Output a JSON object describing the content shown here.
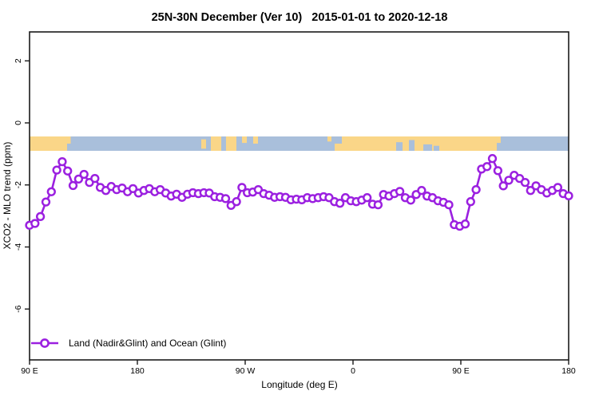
{
  "chart": {
    "title": "25N-30N December (Ver 10)   2015-01-01 to 2020-12-18",
    "xlabel": "Longitude (deg E)",
    "ylabel": "XCO2 - MLO trend (ppm)",
    "legend_label": "Land (Nadir&Glint) and Ocean (Glint)"
  },
  "chart_data": {
    "type": "line",
    "title": "25N-30N December (Ver 10)   2015-01-01 to 2020-12-18",
    "xlabel": "Longitude (deg E)",
    "ylabel": "XCO2 - MLO trend (ppm)",
    "x_tick_labels": [
      "90 E",
      "180",
      "90 W",
      "0",
      "90 E",
      "180"
    ],
    "y_ticks": [
      2,
      0,
      -2,
      -4,
      -6
    ],
    "ylim": [
      -7.6,
      2.9
    ],
    "x_axis_note": "longitude wraps eastward: 90E to 180 to 90W to 0 to 90E to 180 (450 deg span)",
    "x_longitude_start_deg_e": 90,
    "x_longitude_step_deg": 4.5455,
    "grid": false,
    "legend_position": "bottom-left",
    "series": [
      {
        "name": "Land (Nadir&Glint) and Ocean (Glint)",
        "color": "#9B20E0",
        "marker": "open-circle",
        "values": [
          -3.3,
          -3.24,
          -3.02,
          -2.55,
          -2.22,
          -1.52,
          -1.25,
          -1.55,
          -2.02,
          -1.81,
          -1.66,
          -1.92,
          -1.79,
          -2.08,
          -2.18,
          -2.05,
          -2.15,
          -2.1,
          -2.22,
          -2.12,
          -2.26,
          -2.18,
          -2.12,
          -2.22,
          -2.15,
          -2.26,
          -2.36,
          -2.3,
          -2.4,
          -2.3,
          -2.25,
          -2.28,
          -2.25,
          -2.26,
          -2.38,
          -2.4,
          -2.44,
          -2.66,
          -2.54,
          -2.08,
          -2.25,
          -2.23,
          -2.15,
          -2.28,
          -2.33,
          -2.4,
          -2.38,
          -2.4,
          -2.48,
          -2.46,
          -2.48,
          -2.41,
          -2.44,
          -2.41,
          -2.38,
          -2.41,
          -2.54,
          -2.59,
          -2.41,
          -2.51,
          -2.54,
          -2.49,
          -2.41,
          -2.62,
          -2.64,
          -2.31,
          -2.36,
          -2.28,
          -2.21,
          -2.41,
          -2.49,
          -2.31,
          -2.18,
          -2.36,
          -2.41,
          -2.51,
          -2.56,
          -2.64,
          -3.28,
          -3.33,
          -3.26,
          -2.54,
          -2.15,
          -1.49,
          -1.41,
          -1.15,
          -1.54,
          -2.03,
          -1.85,
          -1.69,
          -1.79,
          -1.92,
          -2.18,
          -2.03,
          -2.15,
          -2.26,
          -2.18,
          -2.08,
          -2.28,
          -2.35
        ]
      }
    ],
    "map_strip": {
      "description": "land/ocean world strip for 25N-30N band drawn across plot at about y = -0.4 to -0.9 ppm",
      "land_color": "#FAD688",
      "ocean_color": "#A9BFDB",
      "value_top": -0.44,
      "value_bottom": -0.9,
      "land_segments": [
        {
          "x0": 0.0,
          "x1": 0.0696,
          "y0": 0,
          "y1": 1
        },
        {
          "x0": 0.0696,
          "x1": 0.0763,
          "y0": 0,
          "y1": 0.5
        },
        {
          "x0": 0.3185,
          "x1": 0.3274,
          "y0": 0.2,
          "y1": 0.85
        },
        {
          "x0": 0.3363,
          "x1": 0.3556,
          "y0": 0,
          "y1": 1
        },
        {
          "x0": 0.3644,
          "x1": 0.3837,
          "y0": 0,
          "y1": 1
        },
        {
          "x0": 0.3941,
          "x1": 0.403,
          "y0": 0,
          "y1": 0.45
        },
        {
          "x0": 0.4148,
          "x1": 0.4237,
          "y0": 0,
          "y1": 0.5
        },
        {
          "x0": 0.5526,
          "x1": 0.56,
          "y0": 0,
          "y1": 0.35
        },
        {
          "x0": 0.566,
          "x1": 0.8667,
          "y0": 0,
          "y1": 1
        },
        {
          "x0": 0.8667,
          "x1": 0.874,
          "y0": 0,
          "y1": 0.45
        }
      ],
      "ocean_notches": [
        {
          "x0": 0.566,
          "x1": 0.5793,
          "y0": 0,
          "y1": 0.5
        },
        {
          "x0": 0.68,
          "x1": 0.6919,
          "y0": 0.4,
          "y1": 1
        },
        {
          "x0": 0.7037,
          "x1": 0.7141,
          "y0": 0.25,
          "y1": 1
        },
        {
          "x0": 0.7304,
          "x1": 0.7467,
          "y0": 0.55,
          "y1": 1
        },
        {
          "x0": 0.7496,
          "x1": 0.76,
          "y0": 0.65,
          "y1": 1
        }
      ]
    }
  },
  "colors": {
    "line": "#9B20E0",
    "marker_fill": "#FFFFFF",
    "land": "#FAD688",
    "ocean": "#A9BFDB",
    "frame": "#1a1a1a",
    "background": "#FFFFFF"
  }
}
